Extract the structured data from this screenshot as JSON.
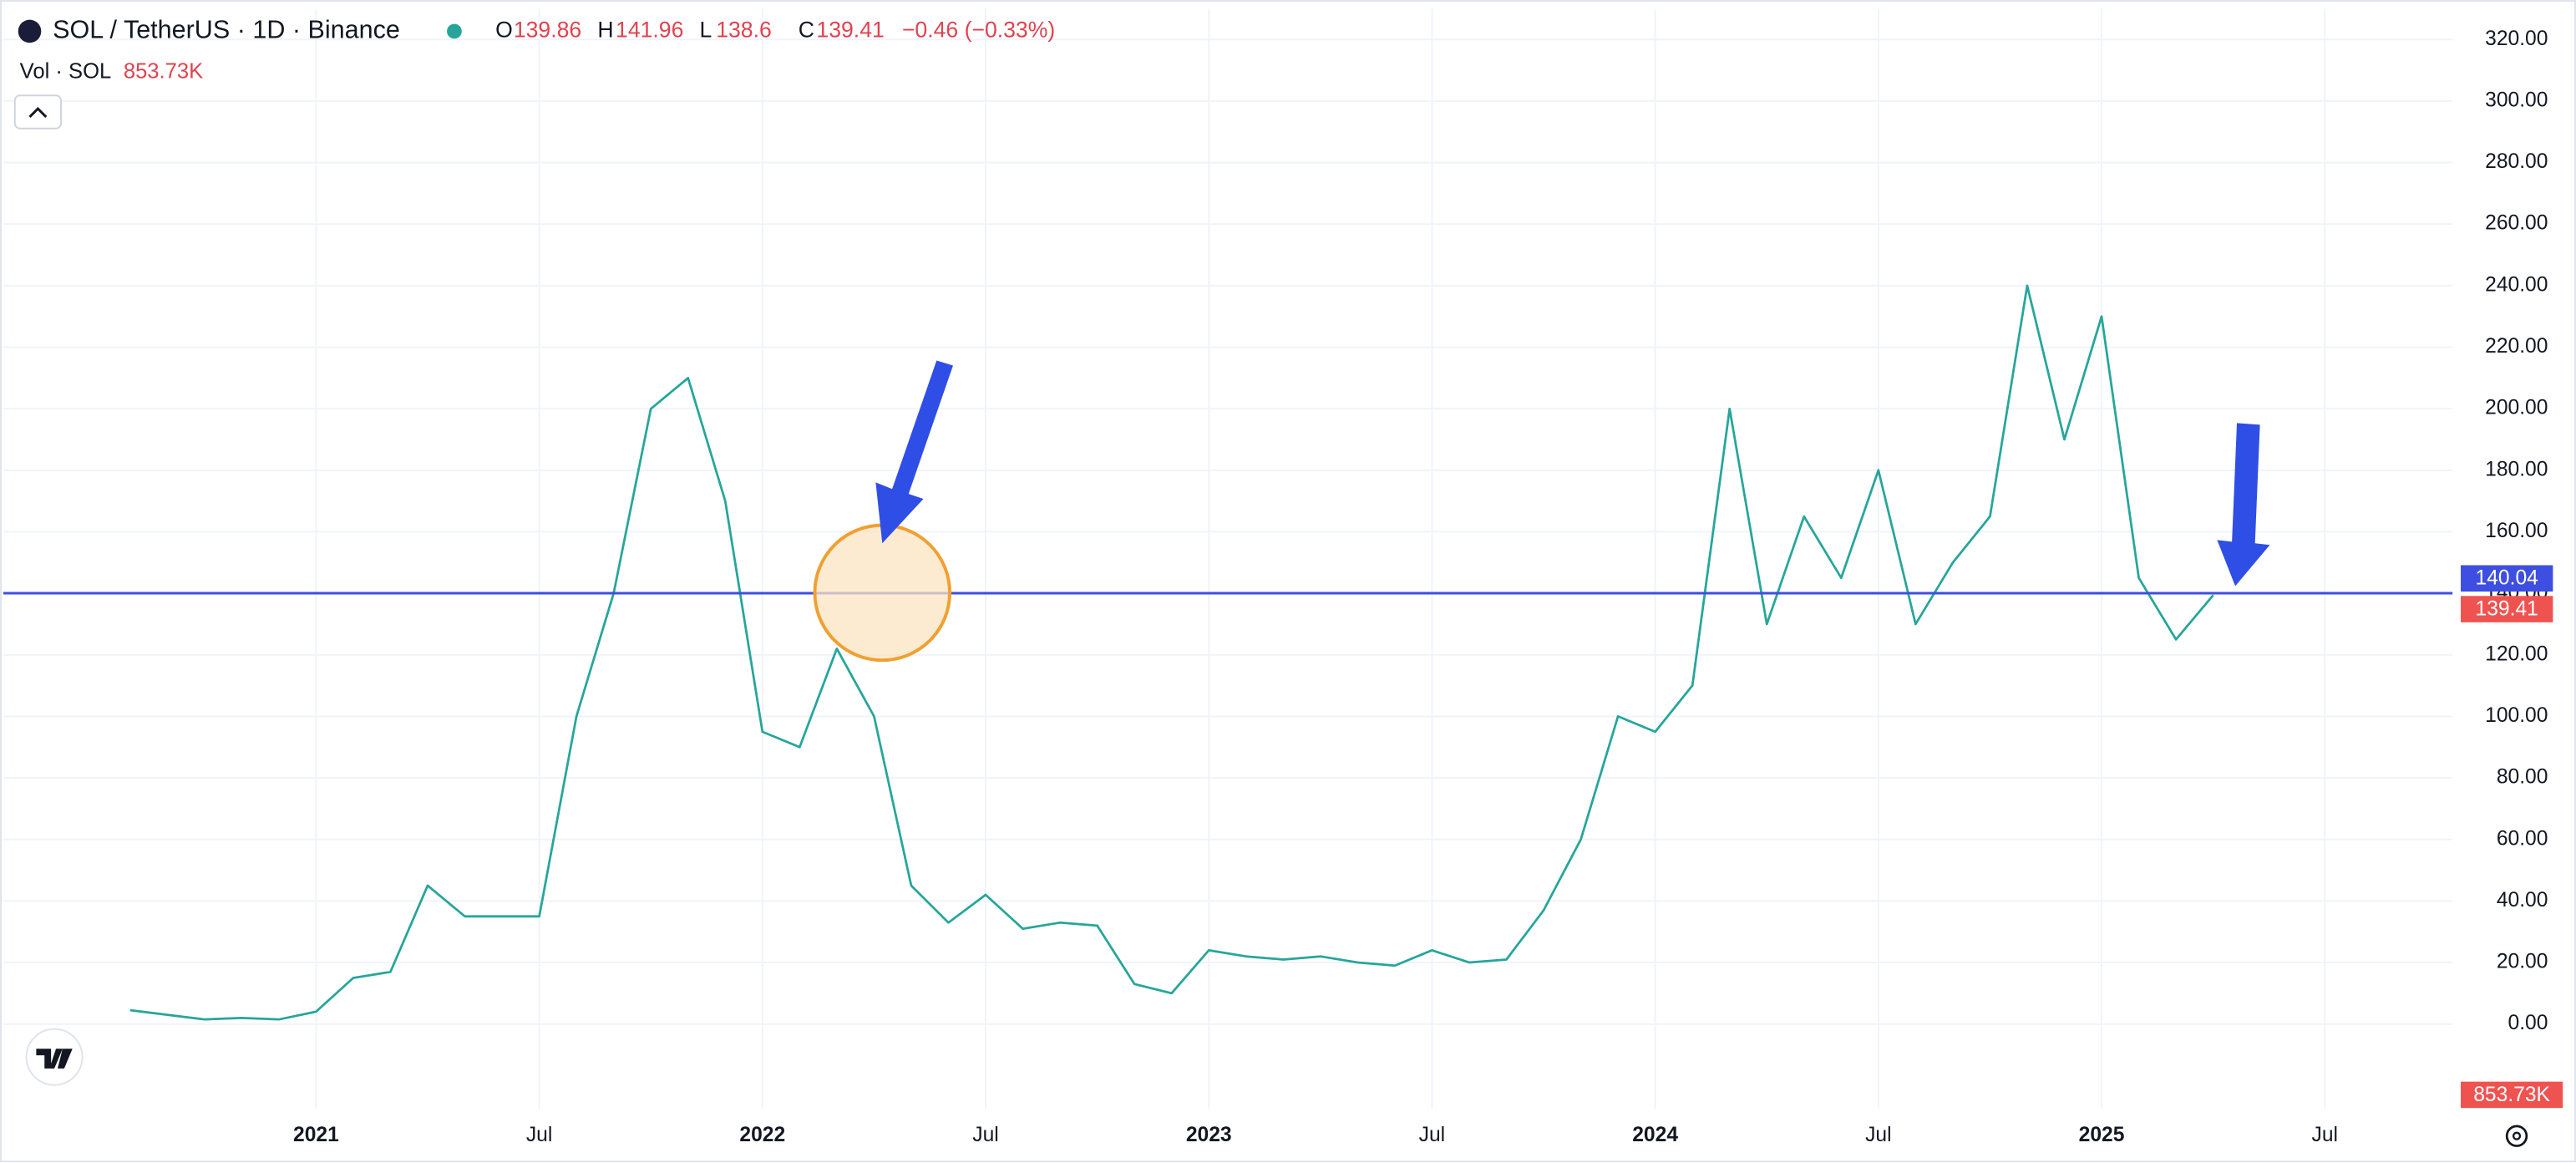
{
  "chart_data": {
    "type": "line",
    "title": "SOL / TetherUS · 1D · Binance",
    "ohlc": {
      "open_label": "O",
      "open": 139.86,
      "high_label": "H",
      "high": 141.96,
      "low_label": "L",
      "low": 138.6,
      "close_label": "C",
      "close": 139.41,
      "change": "−0.46 (−0.33%)"
    },
    "volume_label": "Vol · SOL",
    "volume": "853.73K",
    "categories": [
      null,
      null,
      null,
      null,
      null,
      "2021",
      null,
      null,
      null,
      null,
      null,
      "Jul",
      null,
      null,
      null,
      null,
      null,
      "2022",
      null,
      null,
      null,
      null,
      null,
      "Jul",
      null,
      null,
      null,
      null,
      null,
      "2023",
      null,
      null,
      null,
      null,
      null,
      "Jul",
      null,
      null,
      null,
      null,
      null,
      "2024",
      null,
      null,
      null,
      null,
      null,
      "Jul",
      null,
      null,
      null,
      null,
      null,
      "2025",
      null,
      null,
      null,
      null,
      null,
      "Jul",
      null,
      null
    ],
    "series": [
      {
        "name": "SOL",
        "color": "#26a69a",
        "values": [
          4.5,
          3,
          1.5,
          2,
          1.5,
          4,
          15,
          17,
          45,
          35,
          35,
          35,
          100,
          140,
          200,
          210,
          170,
          95,
          90,
          122,
          100,
          45,
          33,
          42,
          31,
          33,
          32,
          13,
          10,
          24,
          22,
          21,
          22,
          20,
          19,
          24,
          20,
          21,
          37,
          60,
          100,
          95,
          110,
          200,
          130,
          165,
          145,
          180,
          130,
          150,
          165,
          240,
          190,
          230,
          145,
          125,
          139.41,
          null,
          null,
          null,
          null,
          null
        ]
      }
    ],
    "hline": {
      "value": 140.04,
      "color": "#3d4ee0"
    },
    "ylim": [
      -20,
      330
    ],
    "yticks": [
      {
        "value": 0,
        "label": "0.00"
      },
      {
        "value": 20,
        "label": "20.00"
      },
      {
        "value": 40,
        "label": "40.00"
      },
      {
        "value": 60,
        "label": "60.00"
      },
      {
        "value": 80,
        "label": "80.00"
      },
      {
        "value": 100,
        "label": "100.00"
      },
      {
        "value": 120,
        "label": "120.00"
      },
      {
        "value": 140,
        "label": "140.00"
      },
      {
        "value": 160,
        "label": "160.00"
      },
      {
        "value": 180,
        "label": "180.00"
      },
      {
        "value": 200,
        "label": "200.00"
      },
      {
        "value": 220,
        "label": "220.00"
      },
      {
        "value": 240,
        "label": "240.00"
      },
      {
        "value": 260,
        "label": "260.00"
      },
      {
        "value": 280,
        "label": "280.00"
      },
      {
        "value": 300,
        "label": "300.00"
      },
      {
        "value": 320,
        "label": "320.00"
      }
    ],
    "grid": true
  }
}
